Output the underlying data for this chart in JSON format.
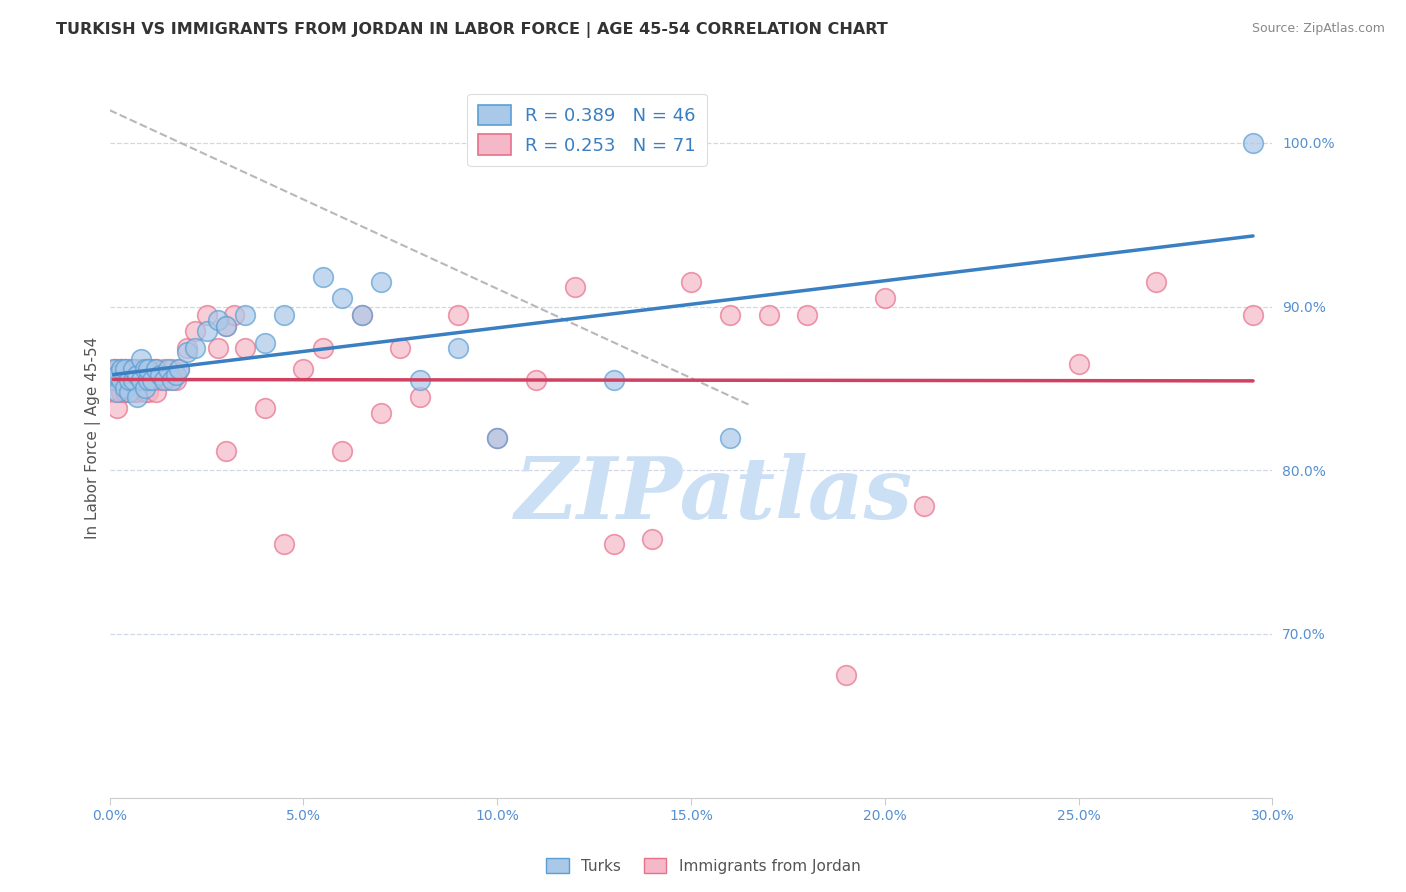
{
  "title": "TURKISH VS IMMIGRANTS FROM JORDAN IN LABOR FORCE | AGE 45-54 CORRELATION CHART",
  "source": "Source: ZipAtlas.com",
  "ylabel": "In Labor Force | Age 45-54",
  "xlim": [
    0.0,
    0.3
  ],
  "ylim": [
    0.6,
    1.04
  ],
  "xticks": [
    0.0,
    0.05,
    0.1,
    0.15,
    0.2,
    0.25,
    0.3
  ],
  "xticklabels": [
    "0.0%",
    "5.0%",
    "10.0%",
    "15.0%",
    "20.0%",
    "25.0%",
    "30.0%"
  ],
  "yticks": [
    0.7,
    0.8,
    0.9,
    1.0
  ],
  "yticklabels": [
    "70.0%",
    "80.0%",
    "90.0%",
    "100.0%"
  ],
  "blue_R": 0.389,
  "blue_N": 46,
  "pink_R": 0.253,
  "pink_N": 71,
  "watermark": "ZIPatlas",
  "watermark_color": "#cce0f5",
  "blue_color": "#aac8e8",
  "pink_color": "#f5b8c8",
  "blue_edge_color": "#5a9fd4",
  "pink_edge_color": "#e8708a",
  "blue_line_color": "#3a7fc1",
  "pink_line_color": "#d04060",
  "legend_color": "#3a7fc1",
  "blue_dots_x": [
    0.001,
    0.001,
    0.002,
    0.002,
    0.003,
    0.003,
    0.004,
    0.004,
    0.005,
    0.005,
    0.006,
    0.006,
    0.007,
    0.007,
    0.008,
    0.008,
    0.009,
    0.009,
    0.01,
    0.01,
    0.011,
    0.012,
    0.013,
    0.014,
    0.015,
    0.016,
    0.017,
    0.018,
    0.02,
    0.022,
    0.025,
    0.028,
    0.03,
    0.035,
    0.04,
    0.045,
    0.055,
    0.06,
    0.065,
    0.07,
    0.08,
    0.09,
    0.1,
    0.13,
    0.16,
    0.295
  ],
  "blue_dots_y": [
    0.855,
    0.862,
    0.848,
    0.858,
    0.855,
    0.862,
    0.85,
    0.862,
    0.848,
    0.855,
    0.855,
    0.862,
    0.845,
    0.858,
    0.855,
    0.868,
    0.85,
    0.862,
    0.855,
    0.862,
    0.855,
    0.862,
    0.858,
    0.855,
    0.862,
    0.855,
    0.858,
    0.862,
    0.872,
    0.875,
    0.885,
    0.892,
    0.888,
    0.895,
    0.878,
    0.895,
    0.918,
    0.905,
    0.895,
    0.915,
    0.855,
    0.875,
    0.82,
    0.855,
    0.82,
    1.0
  ],
  "pink_dots_x": [
    0.001,
    0.001,
    0.001,
    0.002,
    0.002,
    0.002,
    0.003,
    0.003,
    0.003,
    0.004,
    0.004,
    0.004,
    0.005,
    0.005,
    0.005,
    0.006,
    0.006,
    0.006,
    0.007,
    0.007,
    0.007,
    0.008,
    0.008,
    0.009,
    0.009,
    0.01,
    0.01,
    0.01,
    0.011,
    0.011,
    0.012,
    0.012,
    0.013,
    0.014,
    0.015,
    0.016,
    0.017,
    0.018,
    0.02,
    0.022,
    0.025,
    0.028,
    0.03,
    0.032,
    0.035,
    0.04,
    0.045,
    0.05,
    0.055,
    0.06,
    0.065,
    0.07,
    0.075,
    0.08,
    0.09,
    0.1,
    0.11,
    0.12,
    0.13,
    0.14,
    0.15,
    0.16,
    0.17,
    0.18,
    0.19,
    0.2,
    0.21,
    0.25,
    0.27,
    0.295,
    0.03
  ],
  "pink_dots_y": [
    0.855,
    0.848,
    0.862,
    0.855,
    0.862,
    0.838,
    0.848,
    0.855,
    0.862,
    0.855,
    0.848,
    0.862,
    0.855,
    0.848,
    0.862,
    0.855,
    0.862,
    0.848,
    0.855,
    0.862,
    0.848,
    0.855,
    0.862,
    0.848,
    0.855,
    0.862,
    0.855,
    0.848,
    0.862,
    0.855,
    0.848,
    0.862,
    0.855,
    0.862,
    0.855,
    0.862,
    0.855,
    0.862,
    0.875,
    0.885,
    0.895,
    0.875,
    0.888,
    0.895,
    0.875,
    0.838,
    0.755,
    0.862,
    0.875,
    0.812,
    0.895,
    0.835,
    0.875,
    0.845,
    0.895,
    0.82,
    0.855,
    0.912,
    0.755,
    0.758,
    0.915,
    0.895,
    0.895,
    0.895,
    0.675,
    0.905,
    0.778,
    0.865,
    0.915,
    0.895,
    0.812
  ],
  "dashed_line_x": [
    0.0,
    0.165
  ],
  "dashed_line_y": [
    1.02,
    0.84
  ]
}
